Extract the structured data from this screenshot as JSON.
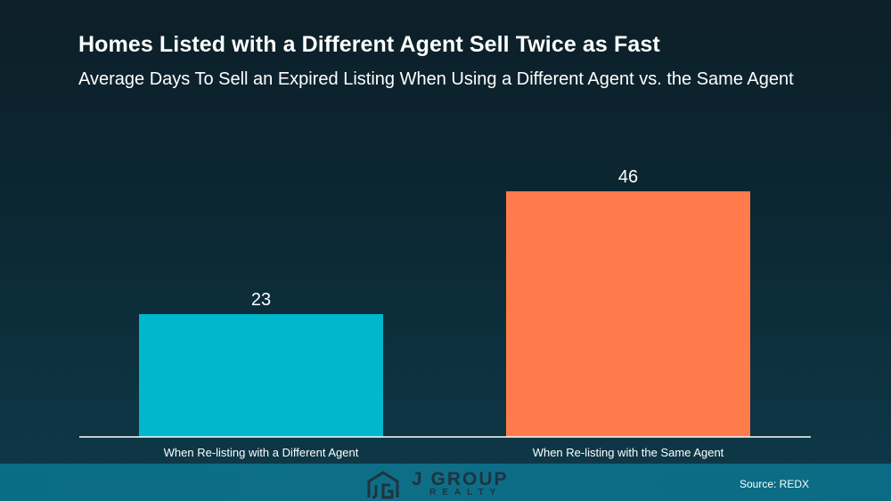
{
  "chart_data": {
    "type": "bar",
    "title": "Homes Listed with a Different Agent Sell Twice as Fast",
    "subtitle": "Average Days To Sell an Expired Listing When Using a Different Agent vs. the Same Agent",
    "categories": [
      "When Re-listing with a Different Agent",
      "When Re-listing with the Same Agent"
    ],
    "values": [
      23,
      46
    ],
    "data_labels": [
      "23",
      "46"
    ],
    "colors": [
      "#00b7cc",
      "#ff7b4c"
    ],
    "ylim": [
      0,
      60
    ],
    "grid": false,
    "legend": "none"
  },
  "footer": {
    "logo_text": "J GROUP",
    "logo_subtext": "REALTY",
    "source": "Source: REDX",
    "logo_icon": "house-jg-icon"
  }
}
